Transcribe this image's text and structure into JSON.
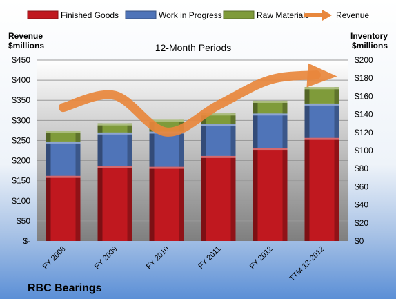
{
  "chart_data": {
    "type": "bar",
    "stacked": true,
    "title": "12-Month Periods",
    "company": "RBC Bearings",
    "y_left_label_line1": "Revenue",
    "y_left_label_line2": "$millions",
    "y_right_label_line1": "Inventory",
    "y_right_label_line2": "$millions",
    "categories": [
      "FY 2008",
      "FY 2009",
      "FY 2010",
      "FY 2011",
      "FY 2012",
      "TTM 12-2012"
    ],
    "series": [
      {
        "name": "Finished Goods",
        "axis": "right",
        "color": "#c0181f",
        "values": [
          72,
          83,
          82,
          94,
          103,
          114
        ]
      },
      {
        "name": "Work in Progress",
        "axis": "right",
        "color": "#4f74b8",
        "values": [
          38,
          37,
          39,
          35,
          38,
          38
        ]
      },
      {
        "name": "Raw Materials",
        "axis": "right",
        "color": "#7f9b3a",
        "values": [
          12,
          10,
          13,
          12,
          14,
          18
        ]
      }
    ],
    "line_series": {
      "name": "Revenue",
      "axis": "left",
      "color": "#e8873c",
      "values": [
        332,
        362,
        271,
        338,
        401,
        413
      ]
    },
    "y_left_ticks": [
      "$-",
      "$50",
      "$100",
      "$150",
      "$200",
      "$250",
      "$300",
      "$350",
      "$400",
      "$450"
    ],
    "y_right_ticks": [
      "$0",
      "$20",
      "$40",
      "$60",
      "$80",
      "$100",
      "$120",
      "$140",
      "$160",
      "$180",
      "$200"
    ],
    "ylim_left": [
      0,
      450
    ],
    "ylim_right": [
      0,
      200
    ],
    "grid": true,
    "legend_position": "top"
  }
}
